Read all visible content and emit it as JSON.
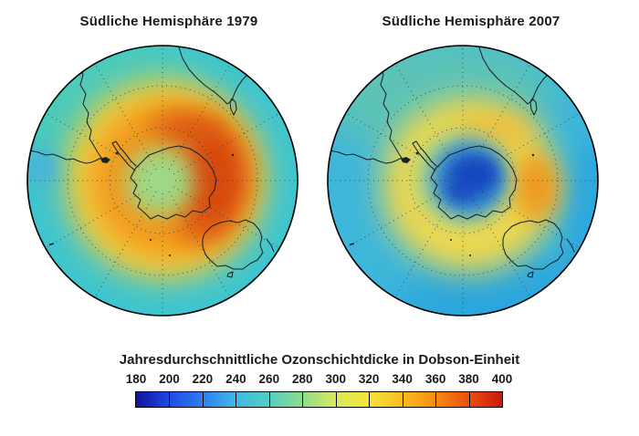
{
  "figure": {
    "background": "#ffffff",
    "text_color": "#1a1a1a"
  },
  "maps": [
    {
      "title": "Südliche Hemisphäre 1979",
      "colors": {
        "rim": "#3ec5cf",
        "rim_teal": "#54cfae",
        "rim_blue_patch": "#49aede",
        "midlat_yellow": "#f4cc38",
        "ring_orange": "#f1991b",
        "ring_max_red": "#d8490d",
        "pole_green": "#9dd886"
      }
    },
    {
      "title": "Südliche Hemisphäre 2007",
      "colors": {
        "rim": "#3fb7da",
        "rim_green": "#63c6ae",
        "rim_deep_blue": "#2aa5dd",
        "ring_yellow": "#eed84e",
        "orange_faint": "#f2b838",
        "orange_spot": "#f0971c",
        "inner_green": "#8ed0a0",
        "hole_blue": "#2e7fd0",
        "hole_core": "#1747c0"
      }
    }
  ],
  "colorbar": {
    "caption": "Jahresdurchschnittliche Ozonschichtdicke in Dobson-Einheit",
    "ticks": [
      "180",
      "200",
      "220",
      "240",
      "260",
      "280",
      "300",
      "320",
      "340",
      "360",
      "380",
      "400"
    ],
    "gradient_stops": [
      "#12129e",
      "#1c4be4",
      "#2f7ef0",
      "#3fb9e8",
      "#52cfc0",
      "#8fdc8c",
      "#d8e95c",
      "#f6e33a",
      "#f9bc22",
      "#f68c14",
      "#ea4f0d",
      "#c81a09"
    ],
    "border_color": "#000000"
  },
  "chart_data": {
    "type": "heatmap",
    "title": "Jahresdurchschnittliche Ozonschichtdicke in Dobson-Einheit",
    "unit": "DU (Dobson-Einheit)",
    "colorbar": {
      "min": 180,
      "max": 400,
      "tick_step": 20,
      "ticks": [
        180,
        200,
        220,
        240,
        260,
        280,
        300,
        320,
        340,
        360,
        380,
        400
      ],
      "palette": "jet-artig: dunkelblau → blau → cyan → grün → gelb → orange → rot"
    },
    "panels": [
      {
        "title": "Südliche Hemisphäre 1979",
        "projection": "südpolare Kreisansicht, Südpol im Zentrum, Antarktis-Küstenlinien",
        "pattern": "Ring hoher Ozonwerte über mittleren/hohen Breiten, dunkelrot-oranges Maximum auf der rechten Seite; Pol grünlich; Rand cyan",
        "approx_values_DU": {
          "Suedpol_Zentrum": 285,
          "Ring_55_65S": 350,
          "Ringmaximum_rechte_Seite": 385,
          "mittlere_Breiten": 310,
          "Rand_25_30S": 260
        }
      },
      {
        "title": "Südliche Hemisphäre 2007",
        "projection": "südpolare Kreisansicht, Südpol im Zentrum, Antarktis-Küstenlinien",
        "pattern": "Ozonloch (dunkelblaues Minimum) über der Antarktis, umgeben von gelbem Ring mit orangem Fleck rechts; insgesamt niedrigere Werte als 1979",
        "approx_values_DU": {
          "Ozonloch_Minimum": 200,
          "Ring_55_65S": 315,
          "lokales_Maximum_rechte_Seite": 345,
          "mittlere_Breiten": 285,
          "Rand_25_30S": 245
        }
      }
    ]
  }
}
